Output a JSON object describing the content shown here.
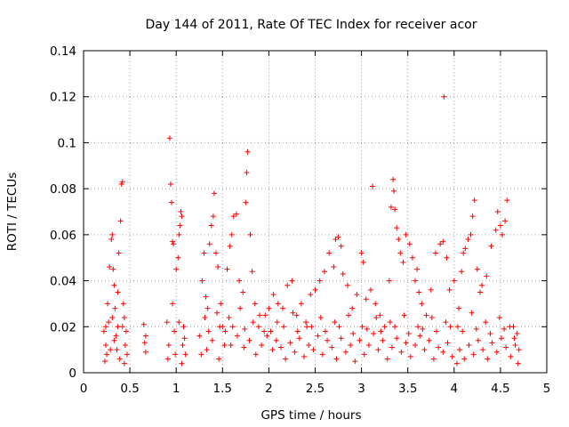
{
  "chart_data": {
    "type": "scatter",
    "title": "Day 144 of 2011, Rate Of TEC Index for receiver acor",
    "xlabel": "GPS time / hours",
    "ylabel": "ROTI / TECUs",
    "xlim": [
      0,
      5
    ],
    "ylim": [
      0,
      0.14
    ],
    "x_ticks": [
      {
        "value": 0,
        "label": "0"
      },
      {
        "value": 0.5,
        "label": "0.5"
      },
      {
        "value": 1,
        "label": "1"
      },
      {
        "value": 1.5,
        "label": "1.5"
      },
      {
        "value": 2,
        "label": "2"
      },
      {
        "value": 2.5,
        "label": "2.5"
      },
      {
        "value": 3,
        "label": "3"
      },
      {
        "value": 3.5,
        "label": "3.5"
      },
      {
        "value": 4,
        "label": "4"
      },
      {
        "value": 4.5,
        "label": "4.5"
      },
      {
        "value": 5,
        "label": "5"
      }
    ],
    "y_ticks": [
      {
        "value": 0,
        "label": "0"
      },
      {
        "value": 0.02,
        "label": "0.02"
      },
      {
        "value": 0.04,
        "label": "0.04"
      },
      {
        "value": 0.06,
        "label": "0.06"
      },
      {
        "value": 0.08,
        "label": "0.08"
      },
      {
        "value": 0.1,
        "label": "0.1"
      },
      {
        "value": 0.12,
        "label": "0.12"
      },
      {
        "value": 0.14,
        "label": "0.14"
      }
    ],
    "grid": true,
    "marker": "plus",
    "series": [
      {
        "name": "ROTI",
        "color": "#ff0000",
        "points": [
          [
            0.22,
            0.018
          ],
          [
            0.24,
            0.012
          ],
          [
            0.25,
            0.008
          ],
          [
            0.27,
            0.022
          ],
          [
            0.28,
            0.046
          ],
          [
            0.3,
            0.058
          ],
          [
            0.31,
            0.06
          ],
          [
            0.32,
            0.045
          ],
          [
            0.33,
            0.038
          ],
          [
            0.34,
            0.028
          ],
          [
            0.35,
            0.016
          ],
          [
            0.36,
            0.01
          ],
          [
            0.37,
            0.02
          ],
          [
            0.38,
            0.052
          ],
          [
            0.4,
            0.066
          ],
          [
            0.41,
            0.082
          ],
          [
            0.42,
            0.083
          ],
          [
            0.43,
            0.03
          ],
          [
            0.44,
            0.024
          ],
          [
            0.45,
            0.012
          ],
          [
            0.46,
            0.018
          ],
          [
            0.47,
            0.008
          ],
          [
            0.65,
            0.021
          ],
          [
            0.66,
            0.013
          ],
          [
            0.67,
            0.009
          ],
          [
            0.9,
            0.022
          ],
          [
            0.92,
            0.012
          ],
          [
            0.93,
            0.102
          ],
          [
            0.94,
            0.082
          ],
          [
            0.95,
            0.074
          ],
          [
            0.96,
            0.057
          ],
          [
            0.97,
            0.056
          ],
          [
            0.98,
            0.018
          ],
          [
            1.0,
            0.045
          ],
          [
            1.02,
            0.05
          ],
          [
            1.03,
            0.06
          ],
          [
            1.04,
            0.064
          ],
          [
            1.05,
            0.07
          ],
          [
            1.06,
            0.068
          ],
          [
            1.07,
            0.012
          ],
          [
            1.08,
            0.02
          ],
          [
            1.1,
            0.008
          ],
          [
            1.25,
            0.016
          ],
          [
            1.28,
            0.04
          ],
          [
            1.3,
            0.052
          ],
          [
            1.32,
            0.033
          ],
          [
            1.34,
            0.028
          ],
          [
            1.36,
            0.056
          ],
          [
            1.38,
            0.064
          ],
          [
            1.4,
            0.068
          ],
          [
            1.41,
            0.078
          ],
          [
            1.43,
            0.052
          ],
          [
            1.45,
            0.046
          ],
          [
            1.48,
            0.03
          ],
          [
            1.5,
            0.02
          ],
          [
            1.52,
            0.012
          ],
          [
            1.55,
            0.045
          ],
          [
            1.58,
            0.055
          ],
          [
            1.6,
            0.06
          ],
          [
            1.62,
            0.068
          ],
          [
            1.65,
            0.069
          ],
          [
            1.68,
            0.04
          ],
          [
            1.72,
            0.035
          ],
          [
            1.75,
            0.074
          ],
          [
            1.76,
            0.087
          ],
          [
            1.77,
            0.096
          ],
          [
            1.8,
            0.06
          ],
          [
            1.82,
            0.044
          ],
          [
            1.85,
            0.03
          ],
          [
            1.9,
            0.025
          ],
          [
            1.95,
            0.018
          ],
          [
            2.0,
            0.028
          ],
          [
            2.05,
            0.034
          ],
          [
            2.1,
            0.03
          ],
          [
            2.15,
            0.028
          ],
          [
            2.2,
            0.038
          ],
          [
            2.25,
            0.04
          ],
          [
            2.3,
            0.025
          ],
          [
            2.35,
            0.03
          ],
          [
            2.4,
            0.022
          ],
          [
            2.45,
            0.034
          ],
          [
            2.5,
            0.036
          ],
          [
            2.55,
            0.04
          ],
          [
            2.6,
            0.044
          ],
          [
            2.65,
            0.052
          ],
          [
            2.7,
            0.046
          ],
          [
            2.72,
            0.058
          ],
          [
            2.75,
            0.059
          ],
          [
            2.78,
            0.055
          ],
          [
            2.8,
            0.043
          ],
          [
            2.85,
            0.038
          ],
          [
            2.9,
            0.028
          ],
          [
            2.95,
            0.034
          ],
          [
            3.0,
            0.052
          ],
          [
            3.02,
            0.048
          ],
          [
            3.05,
            0.032
          ],
          [
            3.1,
            0.036
          ],
          [
            3.12,
            0.081
          ],
          [
            3.15,
            0.03
          ],
          [
            3.2,
            0.025
          ],
          [
            3.25,
            0.02
          ],
          [
            3.3,
            0.04
          ],
          [
            3.32,
            0.072
          ],
          [
            3.34,
            0.084
          ],
          [
            3.35,
            0.079
          ],
          [
            3.36,
            0.071
          ],
          [
            3.38,
            0.063
          ],
          [
            3.4,
            0.058
          ],
          [
            3.42,
            0.052
          ],
          [
            3.45,
            0.048
          ],
          [
            3.48,
            0.06
          ],
          [
            3.52,
            0.056
          ],
          [
            3.55,
            0.05
          ],
          [
            3.58,
            0.04
          ],
          [
            3.6,
            0.045
          ],
          [
            3.62,
            0.035
          ],
          [
            3.65,
            0.03
          ],
          [
            3.7,
            0.025
          ],
          [
            3.75,
            0.036
          ],
          [
            3.8,
            0.052
          ],
          [
            3.85,
            0.056
          ],
          [
            3.88,
            0.057
          ],
          [
            3.89,
            0.12
          ],
          [
            3.92,
            0.05
          ],
          [
            3.95,
            0.036
          ],
          [
            4.0,
            0.04
          ],
          [
            4.05,
            0.028
          ],
          [
            4.08,
            0.044
          ],
          [
            4.1,
            0.052
          ],
          [
            4.12,
            0.054
          ],
          [
            4.15,
            0.058
          ],
          [
            4.18,
            0.06
          ],
          [
            4.2,
            0.068
          ],
          [
            4.22,
            0.075
          ],
          [
            4.25,
            0.045
          ],
          [
            4.28,
            0.035
          ],
          [
            4.3,
            0.038
          ],
          [
            4.35,
            0.042
          ],
          [
            4.4,
            0.055
          ],
          [
            4.45,
            0.062
          ],
          [
            4.47,
            0.07
          ],
          [
            4.5,
            0.064
          ],
          [
            4.52,
            0.06
          ],
          [
            4.55,
            0.066
          ],
          [
            4.57,
            0.075
          ],
          [
            4.6,
            0.02
          ],
          [
            4.65,
            0.015
          ],
          [
            4.7,
            0.01
          ],
          [
            0.23,
            0.005
          ],
          [
            0.29,
            0.01
          ],
          [
            0.33,
            0.014
          ],
          [
            0.39,
            0.006
          ],
          [
            0.44,
            0.004
          ],
          [
            0.67,
            0.016
          ],
          [
            0.91,
            0.006
          ],
          [
            0.99,
            0.008
          ],
          [
            1.06,
            0.004
          ],
          [
            1.27,
            0.008
          ],
          [
            1.33,
            0.01
          ],
          [
            1.39,
            0.014
          ],
          [
            1.46,
            0.006
          ],
          [
            1.53,
            0.018
          ],
          [
            1.59,
            0.012
          ],
          [
            1.66,
            0.016
          ],
          [
            1.73,
            0.011
          ],
          [
            1.79,
            0.014
          ],
          [
            1.86,
            0.008
          ],
          [
            1.92,
            0.012
          ],
          [
            1.98,
            0.016
          ],
          [
            2.04,
            0.01
          ],
          [
            2.08,
            0.014
          ],
          [
            2.13,
            0.011
          ],
          [
            2.18,
            0.006
          ],
          [
            2.23,
            0.013
          ],
          [
            2.28,
            0.009
          ],
          [
            2.33,
            0.015
          ],
          [
            2.38,
            0.007
          ],
          [
            2.43,
            0.012
          ],
          [
            2.48,
            0.01
          ],
          [
            2.53,
            0.016
          ],
          [
            2.58,
            0.008
          ],
          [
            2.63,
            0.014
          ],
          [
            2.68,
            0.011
          ],
          [
            2.73,
            0.006
          ],
          [
            2.78,
            0.015
          ],
          [
            2.83,
            0.009
          ],
          [
            2.88,
            0.012
          ],
          [
            2.93,
            0.005
          ],
          [
            2.98,
            0.014
          ],
          [
            3.03,
            0.008
          ],
          [
            3.08,
            0.012
          ],
          [
            3.13,
            0.017
          ],
          [
            3.18,
            0.01
          ],
          [
            3.23,
            0.014
          ],
          [
            3.28,
            0.006
          ],
          [
            3.33,
            0.011
          ],
          [
            3.38,
            0.015
          ],
          [
            3.43,
            0.009
          ],
          [
            3.48,
            0.013
          ],
          [
            3.53,
            0.007
          ],
          [
            3.58,
            0.012
          ],
          [
            3.63,
            0.016
          ],
          [
            3.68,
            0.01
          ],
          [
            3.73,
            0.014
          ],
          [
            3.78,
            0.006
          ],
          [
            3.83,
            0.011
          ],
          [
            3.88,
            0.009
          ],
          [
            3.93,
            0.013
          ],
          [
            3.98,
            0.007
          ],
          [
            4.03,
            0.004
          ],
          [
            4.06,
            0.01
          ],
          [
            4.11,
            0.006
          ],
          [
            4.16,
            0.012
          ],
          [
            4.21,
            0.008
          ],
          [
            4.26,
            0.014
          ],
          [
            4.31,
            0.01
          ],
          [
            4.36,
            0.006
          ],
          [
            4.41,
            0.013
          ],
          [
            4.46,
            0.009
          ],
          [
            4.51,
            0.015
          ],
          [
            4.56,
            0.011
          ],
          [
            4.61,
            0.007
          ],
          [
            4.66,
            0.012
          ],
          [
            4.69,
            0.004
          ],
          [
            0.26,
            0.03
          ],
          [
            0.37,
            0.035
          ],
          [
            0.96,
            0.03
          ],
          [
            1.03,
            0.022
          ],
          [
            1.31,
            0.024
          ],
          [
            1.44,
            0.026
          ],
          [
            1.57,
            0.024
          ],
          [
            1.69,
            0.028
          ],
          [
            1.83,
            0.022
          ],
          [
            1.96,
            0.025
          ],
          [
            2.09,
            0.022
          ],
          [
            2.26,
            0.026
          ],
          [
            2.41,
            0.02
          ],
          [
            2.56,
            0.024
          ],
          [
            2.71,
            0.022
          ],
          [
            2.86,
            0.025
          ],
          [
            3.01,
            0.02
          ],
          [
            3.16,
            0.024
          ],
          [
            3.31,
            0.022
          ],
          [
            3.46,
            0.025
          ],
          [
            3.61,
            0.02
          ],
          [
            3.76,
            0.024
          ],
          [
            3.91,
            0.022
          ],
          [
            4.04,
            0.02
          ],
          [
            4.19,
            0.026
          ],
          [
            4.34,
            0.022
          ],
          [
            4.49,
            0.024
          ],
          [
            4.64,
            0.02
          ],
          [
            0.24,
            0.02
          ],
          [
            0.31,
            0.024
          ],
          [
            0.42,
            0.02
          ],
          [
            1.09,
            0.015
          ],
          [
            1.35,
            0.018
          ],
          [
            1.47,
            0.02
          ],
          [
            1.61,
            0.02
          ],
          [
            1.74,
            0.019
          ],
          [
            1.89,
            0.02
          ],
          [
            2.02,
            0.018
          ],
          [
            2.16,
            0.02
          ],
          [
            2.31,
            0.018
          ],
          [
            2.46,
            0.02
          ],
          [
            2.61,
            0.018
          ],
          [
            2.76,
            0.02
          ],
          [
            2.91,
            0.017
          ],
          [
            3.06,
            0.019
          ],
          [
            3.21,
            0.018
          ],
          [
            3.36,
            0.02
          ],
          [
            3.51,
            0.017
          ],
          [
            3.66,
            0.019
          ],
          [
            3.81,
            0.018
          ],
          [
            3.96,
            0.02
          ],
          [
            4.09,
            0.018
          ],
          [
            4.24,
            0.019
          ],
          [
            4.39,
            0.017
          ],
          [
            4.54,
            0.019
          ],
          [
            4.68,
            0.017
          ]
        ]
      }
    ]
  }
}
